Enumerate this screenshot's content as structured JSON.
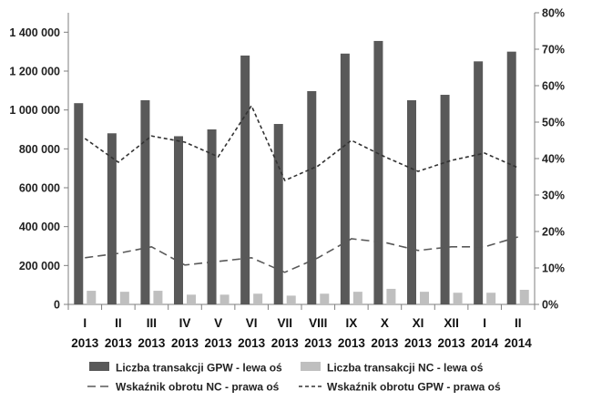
{
  "chart_data": {
    "type": "bar",
    "categories": [
      [
        "I",
        "2013"
      ],
      [
        "II",
        "2013"
      ],
      [
        "III",
        "2013"
      ],
      [
        "IV",
        "2013"
      ],
      [
        "V",
        "2013"
      ],
      [
        "VI",
        "2013"
      ],
      [
        "VII",
        "2013"
      ],
      [
        "VIII",
        "2013"
      ],
      [
        "IX",
        "2013"
      ],
      [
        "X",
        "2013"
      ],
      [
        "XI",
        "2013"
      ],
      [
        "XII",
        "2013"
      ],
      [
        "I",
        "2014"
      ],
      [
        "II",
        "2014"
      ]
    ],
    "series": [
      {
        "name": "Liczba transakcji GPW - lewa oś",
        "kind": "bar",
        "axis": "left",
        "color": "#595959",
        "values": [
          1035000,
          880000,
          1050000,
          865000,
          900000,
          1280000,
          928000,
          1097000,
          1290000,
          1355000,
          1050000,
          1078000,
          1250000,
          1300000
        ]
      },
      {
        "name": "Liczba transakcji NC - lewa oś",
        "kind": "bar",
        "axis": "left",
        "color": "#bfbfbf",
        "values": [
          70000,
          65000,
          70000,
          50000,
          50000,
          55000,
          45000,
          55000,
          65000,
          80000,
          65000,
          60000,
          60000,
          75000
        ]
      },
      {
        "name": "Wskaźnik obrotu NC - prawa oś",
        "kind": "line",
        "axis": "right",
        "style": "long-dash",
        "color": "#595959",
        "values": [
          0.128,
          0.14,
          0.158,
          0.108,
          0.118,
          0.128,
          0.088,
          0.128,
          0.18,
          0.17,
          0.148,
          0.158,
          0.158,
          0.185
        ]
      },
      {
        "name": "Wskaźnik obrotu GPW - prawa oś",
        "kind": "line",
        "axis": "right",
        "style": "short-dash",
        "color": "#333333",
        "values": [
          0.455,
          0.39,
          0.462,
          0.445,
          0.405,
          0.545,
          0.34,
          0.38,
          0.45,
          0.405,
          0.365,
          0.395,
          0.415,
          0.375
        ]
      }
    ],
    "y_left": {
      "ylim": [
        0,
        1500000
      ],
      "ticks": [
        0,
        200000,
        400000,
        600000,
        800000,
        1000000,
        1200000,
        1400000
      ],
      "tick_labels": [
        "0",
        "200 000",
        "400 000",
        "600 000",
        "800 000",
        "1 000 000",
        "1 200 000",
        "1 400 000"
      ]
    },
    "y_right": {
      "ylim": [
        0,
        0.8
      ],
      "ticks": [
        0,
        0.1,
        0.2,
        0.3,
        0.4,
        0.5,
        0.6,
        0.7,
        0.8
      ],
      "tick_labels": [
        "0%",
        "10%",
        "20%",
        "30%",
        "40%",
        "50%",
        "60%",
        "70%",
        "80%"
      ]
    },
    "title": "",
    "xlabel": "",
    "ylabel": "",
    "grid": false,
    "legend_position": "bottom"
  }
}
